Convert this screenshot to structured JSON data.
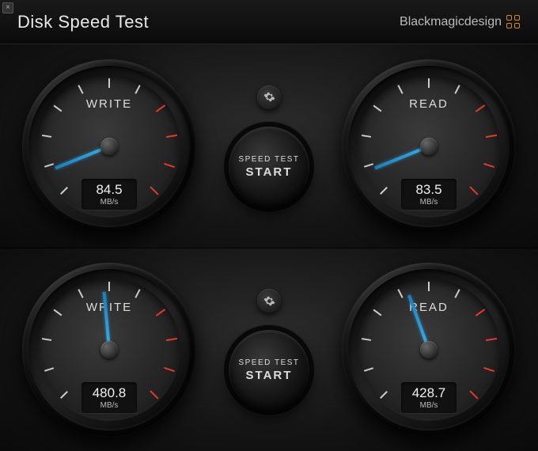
{
  "window": {
    "title": "Disk Speed Test",
    "brand": "Blackmagicdesign"
  },
  "gauge_style": {
    "needle_color": "#39b4f0",
    "tick_color": "#cccccc",
    "tick_red_color": "#e43a2a",
    "face_bg": "#2a2a2a",
    "label_color": "#dddddd",
    "readout_bg": "#111111",
    "sweep_start_deg": -135,
    "sweep_end_deg": 135,
    "tick_count": 11,
    "red_zone_from_tick": 7,
    "scale_max": 1000
  },
  "buttons": {
    "start_line1": "SPEED TEST",
    "start_line2": "START"
  },
  "panels": [
    {
      "gauges": [
        {
          "label": "WRITE",
          "value": "84.5",
          "unit": "MB/s",
          "needle_deg": -112
        },
        {
          "label": "READ",
          "value": "83.5",
          "unit": "MB/s",
          "needle_deg": -112
        }
      ]
    },
    {
      "gauges": [
        {
          "label": "WRITE",
          "value": "480.8",
          "unit": "MB/s",
          "needle_deg": -5
        },
        {
          "label": "READ",
          "value": "428.7",
          "unit": "MB/s",
          "needle_deg": -20
        }
      ]
    }
  ]
}
